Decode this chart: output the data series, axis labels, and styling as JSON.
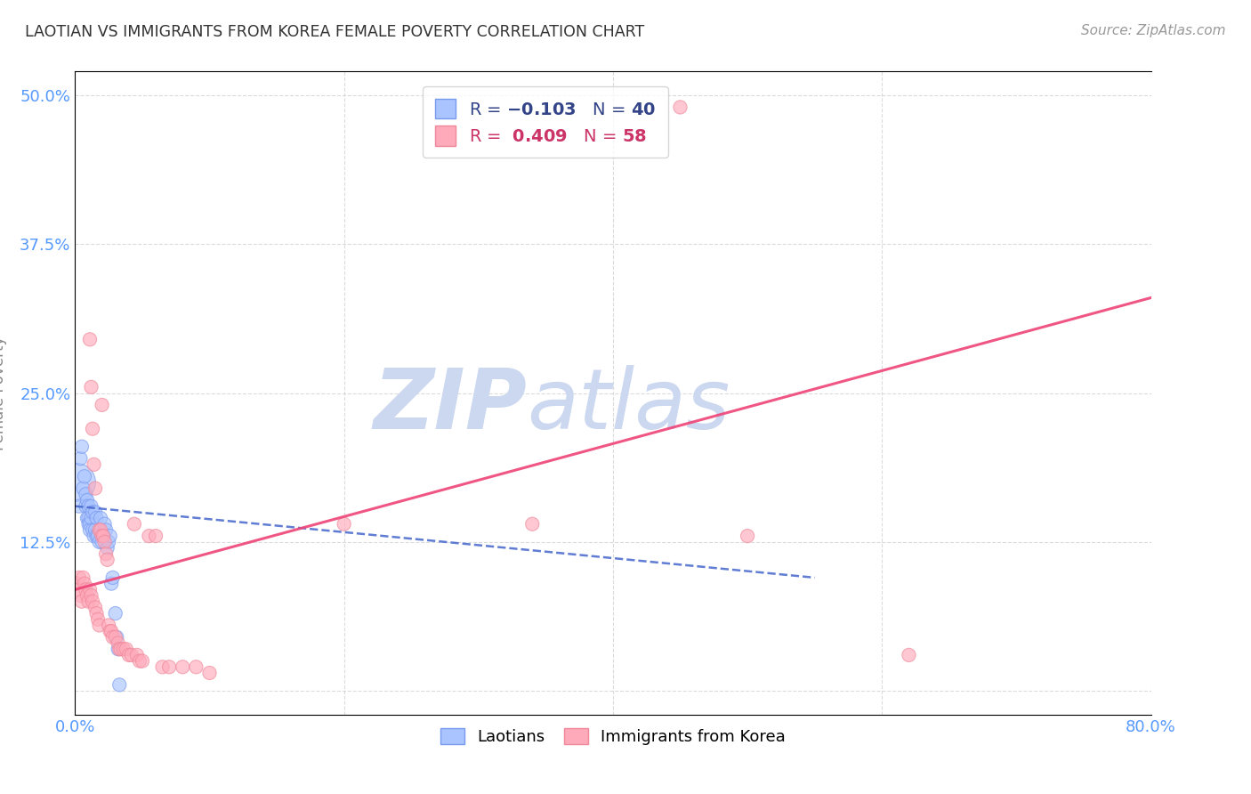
{
  "title": "LAOTIAN VS IMMIGRANTS FROM KOREA FEMALE POVERTY CORRELATION CHART",
  "source": "Source: ZipAtlas.com",
  "ylabel_label": "Female Poverty",
  "xlim": [
    0.0,
    0.8
  ],
  "ylim": [
    -0.02,
    0.52
  ],
  "xticks": [
    0.0,
    0.2,
    0.4,
    0.6,
    0.8
  ],
  "xtick_labels": [
    "0.0%",
    "",
    "",
    "",
    "80.0%"
  ],
  "ytick_labels": [
    "",
    "12.5%",
    "25.0%",
    "37.5%",
    "50.0%"
  ],
  "yticks": [
    0.0,
    0.125,
    0.25,
    0.375,
    0.5
  ],
  "background_color": "#ffffff",
  "grid_color": "#cccccc",
  "axis_label_color": "#5599ff",
  "title_color": "#333333",
  "source_color": "#999999",
  "laotian_color": "#aac4ff",
  "laotian_edge_color": "#7799ee",
  "korea_color": "#ffaabb",
  "korea_edge_color": "#ee8899",
  "laotian_R": -0.103,
  "laotian_N": 40,
  "korea_R": 0.409,
  "korea_N": 58,
  "laotian_points": [
    [
      0.001,
      0.175
    ],
    [
      0.003,
      0.155
    ],
    [
      0.004,
      0.195
    ],
    [
      0.005,
      0.205
    ],
    [
      0.006,
      0.17
    ],
    [
      0.007,
      0.18
    ],
    [
      0.008,
      0.165
    ],
    [
      0.008,
      0.155
    ],
    [
      0.009,
      0.16
    ],
    [
      0.009,
      0.145
    ],
    [
      0.01,
      0.155
    ],
    [
      0.01,
      0.145
    ],
    [
      0.01,
      0.14
    ],
    [
      0.011,
      0.14
    ],
    [
      0.011,
      0.135
    ],
    [
      0.012,
      0.155
    ],
    [
      0.012,
      0.145
    ],
    [
      0.013,
      0.15
    ],
    [
      0.013,
      0.135
    ],
    [
      0.014,
      0.13
    ],
    [
      0.015,
      0.15
    ],
    [
      0.015,
      0.135
    ],
    [
      0.016,
      0.13
    ],
    [
      0.016,
      0.145
    ],
    [
      0.017,
      0.13
    ],
    [
      0.018,
      0.125
    ],
    [
      0.019,
      0.145
    ],
    [
      0.02,
      0.125
    ],
    [
      0.021,
      0.13
    ],
    [
      0.022,
      0.14
    ],
    [
      0.023,
      0.135
    ],
    [
      0.024,
      0.12
    ],
    [
      0.025,
      0.125
    ],
    [
      0.026,
      0.13
    ],
    [
      0.027,
      0.09
    ],
    [
      0.028,
      0.095
    ],
    [
      0.03,
      0.065
    ],
    [
      0.031,
      0.045
    ],
    [
      0.032,
      0.035
    ],
    [
      0.033,
      0.005
    ]
  ],
  "laotian_large_idx": 0,
  "korea_points": [
    [
      0.001,
      0.09
    ],
    [
      0.002,
      0.085
    ],
    [
      0.003,
      0.095
    ],
    [
      0.004,
      0.08
    ],
    [
      0.005,
      0.075
    ],
    [
      0.006,
      0.095
    ],
    [
      0.007,
      0.09
    ],
    [
      0.008,
      0.085
    ],
    [
      0.009,
      0.08
    ],
    [
      0.01,
      0.075
    ],
    [
      0.011,
      0.295
    ],
    [
      0.011,
      0.085
    ],
    [
      0.012,
      0.255
    ],
    [
      0.012,
      0.08
    ],
    [
      0.013,
      0.22
    ],
    [
      0.013,
      0.075
    ],
    [
      0.014,
      0.19
    ],
    [
      0.015,
      0.17
    ],
    [
      0.015,
      0.07
    ],
    [
      0.016,
      0.065
    ],
    [
      0.017,
      0.06
    ],
    [
      0.018,
      0.135
    ],
    [
      0.018,
      0.055
    ],
    [
      0.019,
      0.135
    ],
    [
      0.02,
      0.24
    ],
    [
      0.02,
      0.13
    ],
    [
      0.021,
      0.13
    ],
    [
      0.022,
      0.125
    ],
    [
      0.023,
      0.115
    ],
    [
      0.024,
      0.11
    ],
    [
      0.025,
      0.055
    ],
    [
      0.026,
      0.05
    ],
    [
      0.027,
      0.05
    ],
    [
      0.028,
      0.045
    ],
    [
      0.03,
      0.045
    ],
    [
      0.032,
      0.04
    ],
    [
      0.033,
      0.035
    ],
    [
      0.034,
      0.035
    ],
    [
      0.036,
      0.035
    ],
    [
      0.038,
      0.035
    ],
    [
      0.04,
      0.03
    ],
    [
      0.042,
      0.03
    ],
    [
      0.044,
      0.14
    ],
    [
      0.046,
      0.03
    ],
    [
      0.048,
      0.025
    ],
    [
      0.05,
      0.025
    ],
    [
      0.055,
      0.13
    ],
    [
      0.06,
      0.13
    ],
    [
      0.065,
      0.02
    ],
    [
      0.07,
      0.02
    ],
    [
      0.08,
      0.02
    ],
    [
      0.09,
      0.02
    ],
    [
      0.1,
      0.015
    ],
    [
      0.2,
      0.14
    ],
    [
      0.34,
      0.14
    ],
    [
      0.45,
      0.49
    ],
    [
      0.5,
      0.13
    ],
    [
      0.62,
      0.03
    ]
  ],
  "laotian_line_x": [
    0.0,
    0.55
  ],
  "laotian_line_y": [
    0.155,
    0.095
  ],
  "laotian_line_color": "#4466cc",
  "laotian_line_style": "--",
  "korea_line_x": [
    0.0,
    0.8
  ],
  "korea_line_y": [
    0.085,
    0.33
  ],
  "korea_line_color": "#ee4477",
  "korea_line_style": "-",
  "watermark_zip": "ZIP",
  "watermark_atlas": "atlas",
  "watermark_color": "#ccd8f0",
  "legend_facecolor": "#ffffff",
  "legend_edgecolor": "#cccccc",
  "dot_size": 120
}
